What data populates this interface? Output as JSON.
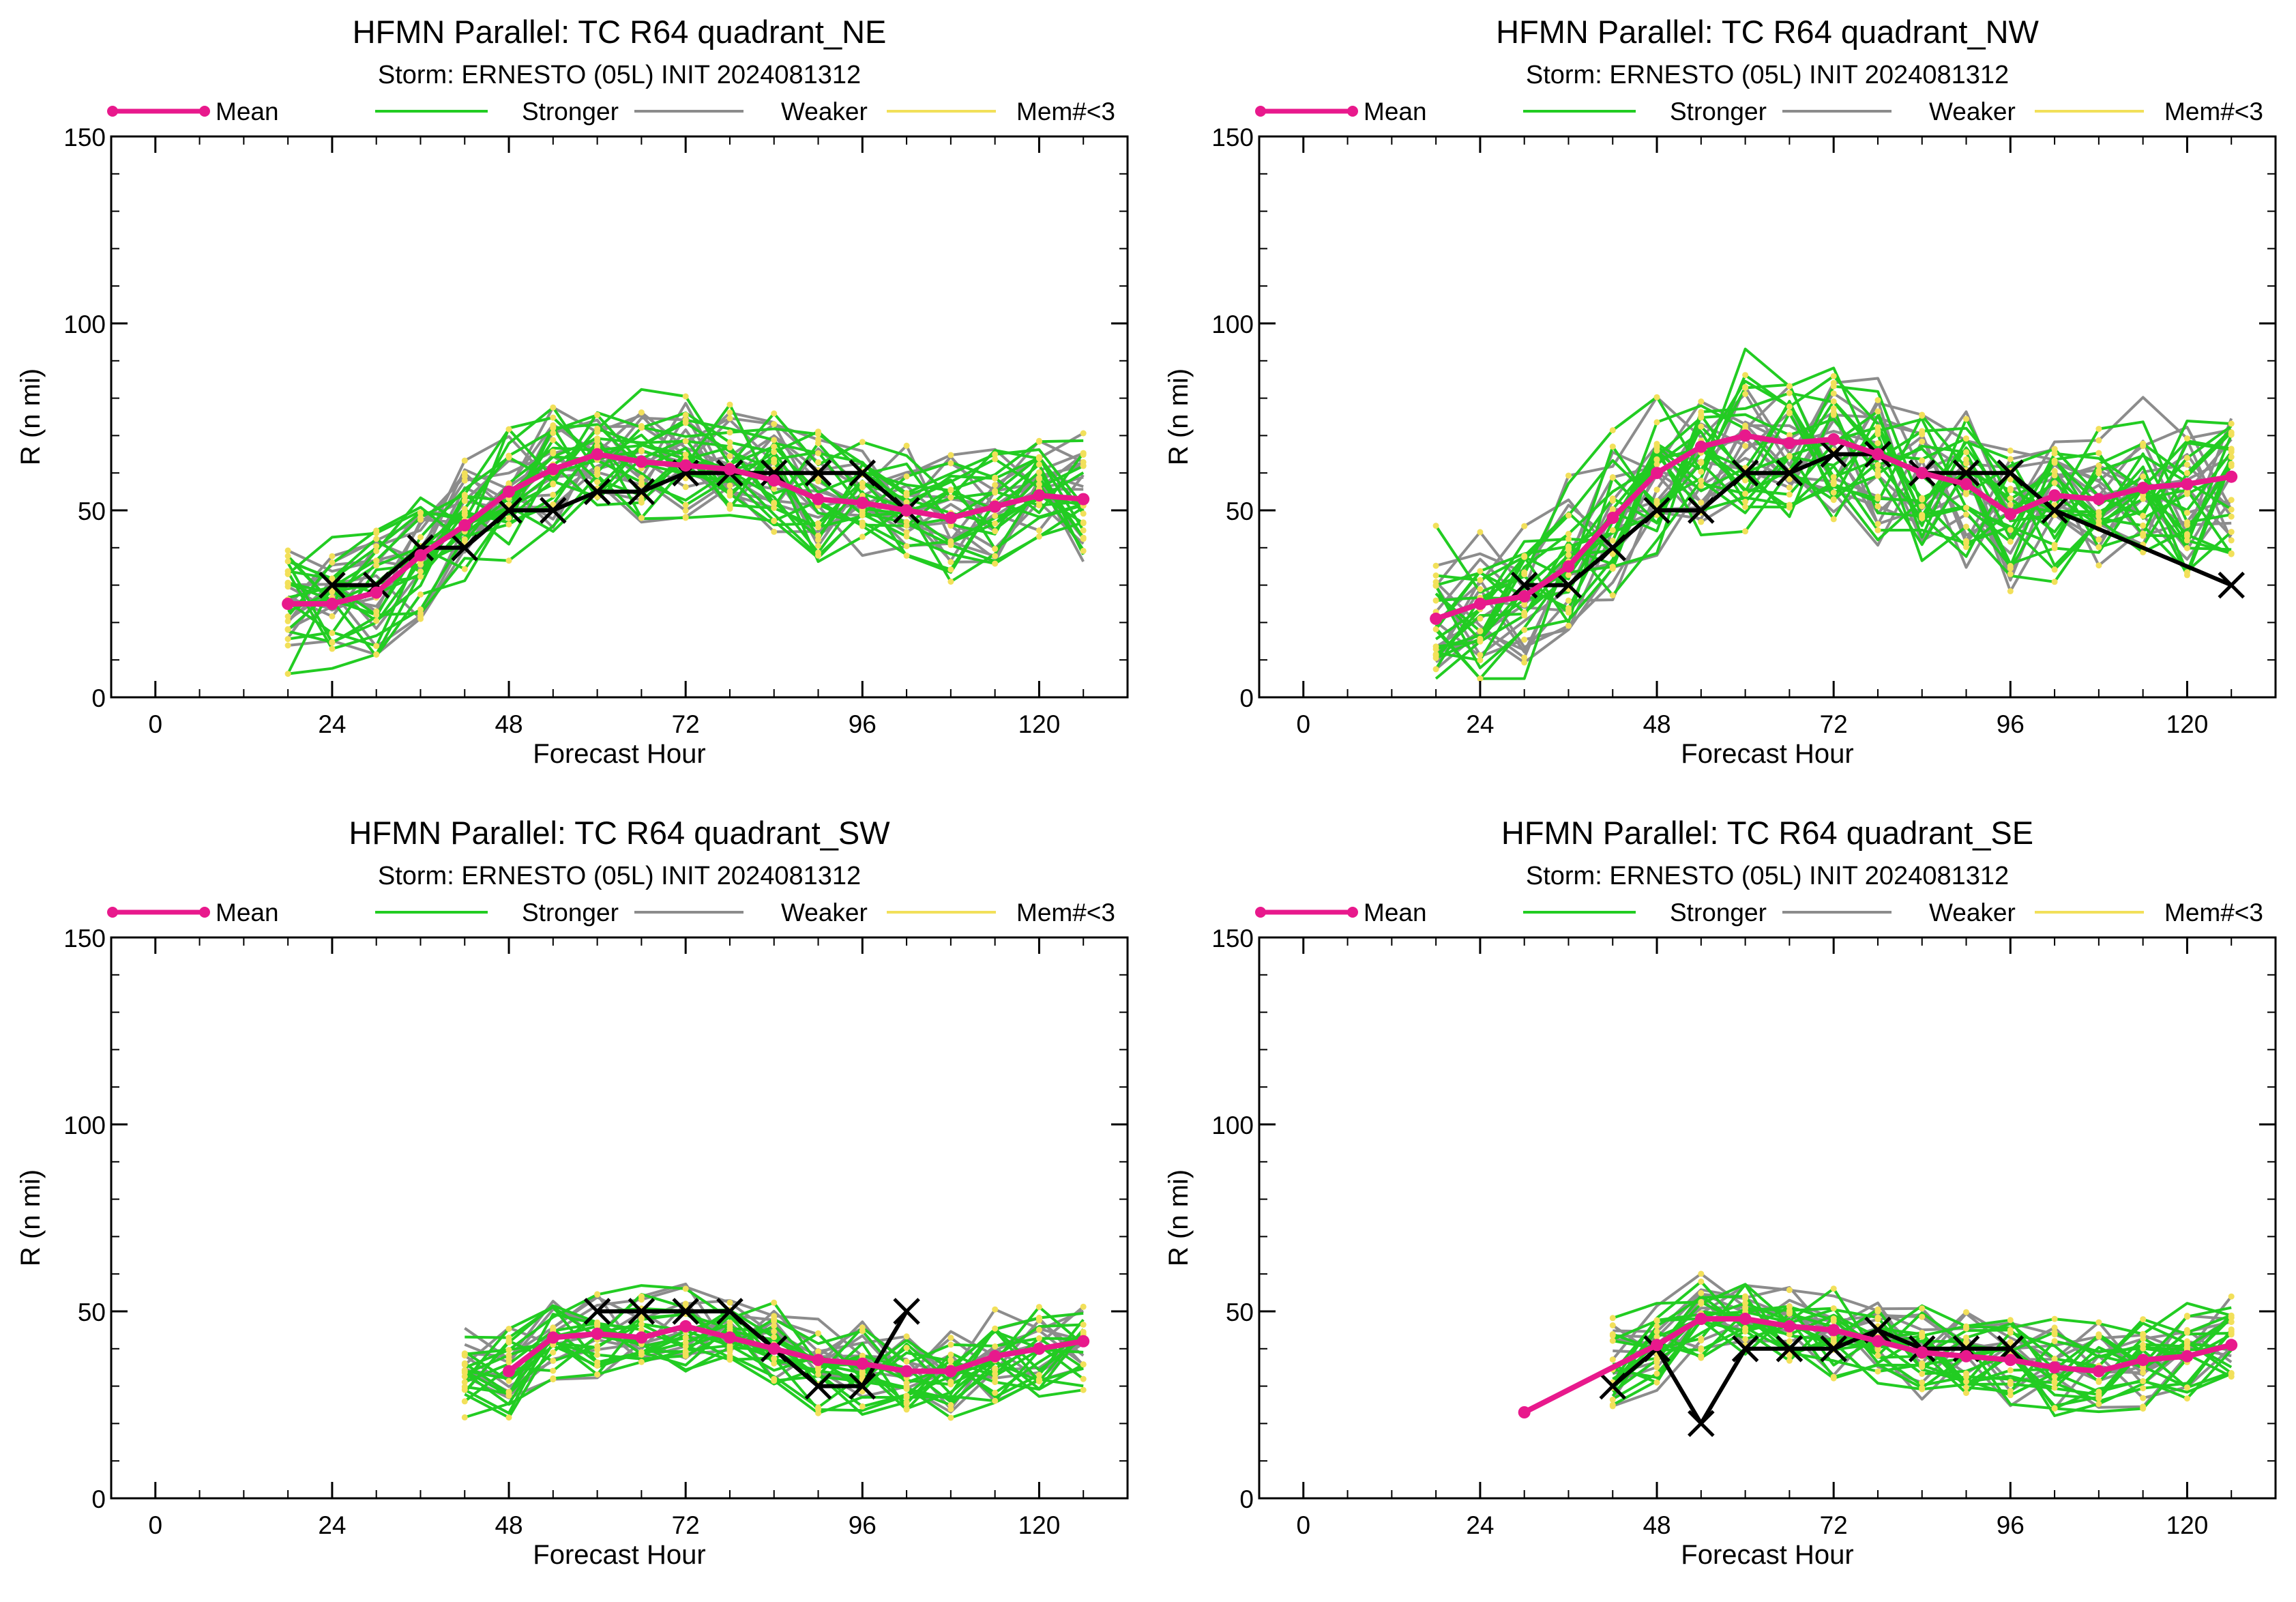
{
  "legend": {
    "items": [
      {
        "label": "Mean",
        "color": "#e8198c",
        "marker": "dot"
      },
      {
        "label": "Stronger",
        "color": "#22cc22",
        "marker": "none"
      },
      {
        "label": "Weaker",
        "color": "#8c8c8c",
        "marker": "none"
      },
      {
        "label": "Mem#<3",
        "color": "#f2e05a",
        "marker": "none"
      }
    ]
  },
  "colors": {
    "mean": "#e8198c",
    "stronger": "#22cc22",
    "weaker": "#8c8c8c",
    "few_members": "#f2e05a",
    "best_track": "#000000"
  },
  "chart_data": [
    {
      "type": "line",
      "title": "HFMN Parallel: TC  R64 quadrant_NE",
      "subtitle": "Storm: ERNESTO (05L) INIT 2024081312",
      "xlabel": "Forecast Hour",
      "ylabel": "R (n mi)",
      "xlim": [
        -6,
        132
      ],
      "ylim": [
        0,
        150
      ],
      "xticks": [
        0,
        24,
        48,
        72,
        96,
        120
      ],
      "yticks": [
        0,
        50,
        100,
        150
      ],
      "mean": {
        "x": [
          18,
          24,
          30,
          36,
          42,
          48,
          54,
          60,
          66,
          72,
          78,
          84,
          90,
          96,
          102,
          108,
          114,
          120,
          126
        ],
        "y": [
          25,
          25,
          28,
          38,
          46,
          55,
          61,
          65,
          63,
          62,
          61,
          58,
          53,
          52,
          50,
          48,
          51,
          54,
          53
        ]
      },
      "best_track": {
        "x": [
          24,
          30,
          36,
          42,
          48,
          54,
          60,
          66,
          72,
          78,
          84,
          90,
          96,
          102
        ],
        "y": [
          30,
          30,
          40,
          40,
          50,
          50,
          55,
          55,
          60,
          60,
          60,
          60,
          60,
          50
        ]
      },
      "ensemble": {
        "x_start": 18,
        "x_end": 126,
        "n_stronger": 20,
        "n_weaker": 14,
        "spread": 11,
        "seed": 11
      }
    },
    {
      "type": "line",
      "title": "HFMN Parallel: TC  R64 quadrant_NW",
      "subtitle": "Storm: ERNESTO (05L) INIT 2024081312",
      "xlabel": "Forecast Hour",
      "ylabel": "R (n mi)",
      "xlim": [
        -6,
        132
      ],
      "ylim": [
        0,
        150
      ],
      "xticks": [
        0,
        24,
        48,
        72,
        96,
        120
      ],
      "yticks": [
        0,
        50,
        100,
        150
      ],
      "mean": {
        "x": [
          18,
          24,
          30,
          36,
          42,
          48,
          54,
          60,
          66,
          72,
          78,
          84,
          90,
          96,
          102,
          108,
          114,
          120,
          126
        ],
        "y": [
          21,
          25,
          27,
          35,
          48,
          60,
          67,
          70,
          68,
          69,
          65,
          60,
          57,
          49,
          54,
          53,
          56,
          57,
          59
        ]
      },
      "best_track": {
        "x": [
          30,
          36,
          42,
          48,
          54,
          60,
          66,
          72,
          78,
          84,
          90,
          96,
          102,
          126
        ],
        "y": [
          30,
          30,
          40,
          50,
          50,
          60,
          60,
          65,
          65,
          60,
          60,
          60,
          50,
          30
        ]
      },
      "ensemble": {
        "x_start": 18,
        "x_end": 126,
        "n_stronger": 20,
        "n_weaker": 14,
        "spread": 15,
        "seed": 23
      }
    },
    {
      "type": "line",
      "title": "HFMN Parallel: TC  R64 quadrant_SW",
      "subtitle": "Storm: ERNESTO (05L) INIT 2024081312",
      "xlabel": "Forecast Hour",
      "ylabel": "R (n mi)",
      "xlim": [
        -6,
        132
      ],
      "ylim": [
        0,
        150
      ],
      "xticks": [
        0,
        24,
        48,
        72,
        96,
        120
      ],
      "yticks": [
        0,
        50,
        100,
        150
      ],
      "mean": {
        "x": [
          48,
          54,
          60,
          66,
          72,
          78,
          84,
          90,
          96,
          102,
          108,
          114,
          120,
          126
        ],
        "y": [
          34,
          43,
          44,
          43,
          46,
          43,
          40,
          37,
          36,
          34,
          34,
          38,
          40,
          42
        ]
      },
      "best_track": {
        "x": [
          60,
          66,
          72,
          78,
          84,
          90,
          96,
          102
        ],
        "y": [
          50,
          50,
          50,
          50,
          40,
          30,
          30,
          50
        ]
      },
      "ensemble": {
        "x_start": 42,
        "x_end": 126,
        "n_stronger": 18,
        "n_weaker": 10,
        "spread": 8,
        "seed": 37
      }
    },
    {
      "type": "line",
      "title": "HFMN Parallel: TC  R64 quadrant_SE",
      "subtitle": "Storm: ERNESTO (05L) INIT 2024081312",
      "xlabel": "Forecast Hour",
      "ylabel": "R (n mi)",
      "xlim": [
        -6,
        132
      ],
      "ylim": [
        0,
        150
      ],
      "xticks": [
        0,
        24,
        48,
        72,
        96,
        120
      ],
      "yticks": [
        0,
        50,
        100,
        150
      ],
      "mean": {
        "x": [
          30,
          48,
          54,
          60,
          66,
          72,
          78,
          84,
          90,
          96,
          102,
          108,
          114,
          120,
          126
        ],
        "y": [
          23,
          41,
          48,
          48,
          46,
          45,
          42,
          39,
          38,
          37,
          35,
          34,
          37,
          38,
          41
        ]
      },
      "best_track": {
        "x": [
          42,
          48,
          54,
          60,
          66,
          72,
          78,
          84,
          90,
          96
        ],
        "y": [
          30,
          40,
          20,
          40,
          40,
          40,
          45,
          40,
          40,
          40
        ]
      },
      "ensemble": {
        "x_start": 42,
        "x_end": 126,
        "n_stronger": 18,
        "n_weaker": 10,
        "spread": 8,
        "seed": 53
      }
    }
  ]
}
